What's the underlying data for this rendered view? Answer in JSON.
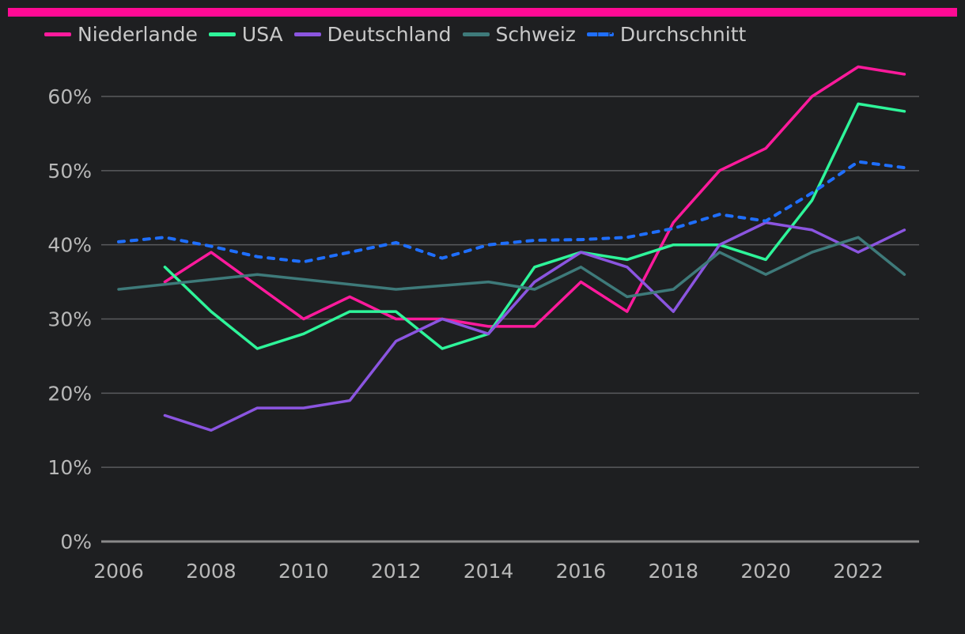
{
  "colors": {
    "background": "#1e1f21",
    "accent_bar": "#ff0a94",
    "grid": "#5a5b5e",
    "axis": "#8a8a8a"
  },
  "chart_data": {
    "type": "line",
    "title": "",
    "xlabel": "",
    "ylabel": "",
    "x_ticks": [
      "2006",
      "2008",
      "2010",
      "2012",
      "2014",
      "2016",
      "2018",
      "2020",
      "2022"
    ],
    "x_tick_values": [
      2006,
      2008,
      2010,
      2012,
      2014,
      2016,
      2018,
      2020,
      2022
    ],
    "y_ticks": [
      "0%",
      "10%",
      "20%",
      "30%",
      "40%",
      "50%",
      "60%"
    ],
    "y_tick_values": [
      0,
      10,
      20,
      30,
      40,
      50,
      60
    ],
    "xlim": [
      2006,
      2023
    ],
    "ylim": [
      0,
      60
    ],
    "grid": true,
    "legend_position": "top-left",
    "series": [
      {
        "name": "Niederlande",
        "color": "#ff1a9c",
        "dashed": false,
        "points": [
          [
            2007,
            35
          ],
          [
            2008,
            39
          ],
          [
            2009,
            34.5
          ],
          [
            2010,
            30
          ],
          [
            2011,
            33
          ],
          [
            2012,
            30
          ],
          [
            2013,
            30
          ],
          [
            2014,
            29
          ],
          [
            2015,
            29
          ],
          [
            2016,
            35
          ],
          [
            2017,
            31
          ],
          [
            2018,
            43
          ],
          [
            2019,
            50
          ],
          [
            2020,
            53
          ],
          [
            2021,
            60
          ],
          [
            2022,
            64
          ],
          [
            2023,
            63
          ]
        ]
      },
      {
        "name": "USA",
        "color": "#2ef59a",
        "dashed": false,
        "points": [
          [
            2007,
            37
          ],
          [
            2008,
            31
          ],
          [
            2009,
            26
          ],
          [
            2010,
            28
          ],
          [
            2011,
            31
          ],
          [
            2012,
            31
          ],
          [
            2013,
            26
          ],
          [
            2014,
            28
          ],
          [
            2015,
            37
          ],
          [
            2016,
            39
          ],
          [
            2017,
            38
          ],
          [
            2018,
            40
          ],
          [
            2019,
            40
          ],
          [
            2020,
            38
          ],
          [
            2021,
            46
          ],
          [
            2022,
            59
          ],
          [
            2023,
            58
          ]
        ]
      },
      {
        "name": "Deutschland",
        "color": "#8b55e0",
        "dashed": false,
        "points": [
          [
            2007,
            17
          ],
          [
            2008,
            15
          ],
          [
            2009,
            18
          ],
          [
            2010,
            18
          ],
          [
            2011,
            19
          ],
          [
            2012,
            27
          ],
          [
            2013,
            30
          ],
          [
            2014,
            28
          ],
          [
            2015,
            35
          ],
          [
            2016,
            39
          ],
          [
            2017,
            37
          ],
          [
            2018,
            31
          ],
          [
            2019,
            40
          ],
          [
            2020,
            43
          ],
          [
            2021,
            42
          ],
          [
            2022,
            39
          ],
          [
            2023,
            42
          ]
        ]
      },
      {
        "name": "Schweiz",
        "color": "#3e7a7a",
        "dashed": false,
        "points": [
          [
            2006,
            34
          ],
          [
            2009,
            36
          ],
          [
            2012,
            34
          ],
          [
            2014,
            35
          ],
          [
            2015,
            34
          ],
          [
            2016,
            37
          ],
          [
            2017,
            33
          ],
          [
            2018,
            34
          ],
          [
            2019,
            39
          ],
          [
            2020,
            36
          ],
          [
            2021,
            39
          ],
          [
            2022,
            41
          ],
          [
            2023,
            36
          ]
        ]
      },
      {
        "name": "Durchschnitt",
        "color": "#1f6fff",
        "dashed": true,
        "points": [
          [
            2006,
            40.4
          ],
          [
            2007,
            41
          ],
          [
            2008,
            39.8
          ],
          [
            2009,
            38.4
          ],
          [
            2010,
            37.7
          ],
          [
            2011,
            39
          ],
          [
            2012,
            40.3
          ],
          [
            2013,
            38.2
          ],
          [
            2014,
            40
          ],
          [
            2015,
            40.6
          ],
          [
            2016,
            40.7
          ],
          [
            2017,
            41
          ],
          [
            2018,
            42.2
          ],
          [
            2019,
            44.1
          ],
          [
            2020,
            43.2
          ],
          [
            2021,
            47
          ],
          [
            2022,
            51.2
          ],
          [
            2023,
            50.4
          ]
        ]
      }
    ]
  }
}
